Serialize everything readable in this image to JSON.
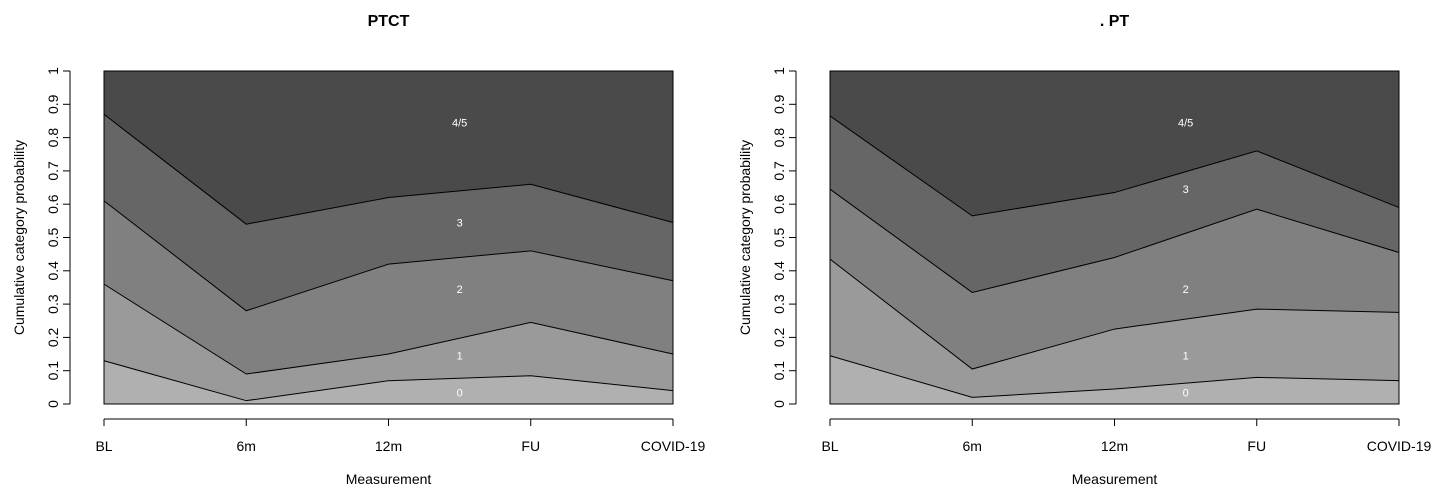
{
  "chart_data": [
    {
      "type": "area",
      "title": "PTCT",
      "xlabel": "Measurement",
      "ylabel": "Cumulative category probability",
      "categories": [
        "BL",
        "6m",
        "12m",
        "FU",
        "COVID-19"
      ],
      "ylim": [
        0,
        1
      ],
      "yticks": [
        "0",
        "0.1",
        "0.2",
        "0.3",
        "0.4",
        "0.5",
        "0.6",
        "0.7",
        "0.8",
        "0.9",
        "1"
      ],
      "grid": false,
      "band_colors": [
        "#b0b0b0",
        "#9a9a9a",
        "#808080",
        "#666666",
        "#4a4a4a"
      ],
      "boundaries": [
        {
          "name": "0",
          "values": [
            0.13,
            0.01,
            0.07,
            0.085,
            0.04
          ]
        },
        {
          "name": "1",
          "values": [
            0.36,
            0.09,
            0.15,
            0.245,
            0.15
          ]
        },
        {
          "name": "2",
          "values": [
            0.61,
            0.28,
            0.42,
            0.46,
            0.37
          ]
        },
        {
          "name": "3",
          "values": [
            0.87,
            0.54,
            0.62,
            0.66,
            0.545
          ]
        },
        {
          "name": "4/5",
          "values": [
            1,
            1,
            1,
            1,
            1
          ]
        }
      ],
      "band_labels": [
        {
          "text": "0",
          "x": 2.5,
          "y": 0.035
        },
        {
          "text": "1",
          "x": 2.5,
          "y": 0.145
        },
        {
          "text": "2",
          "x": 2.5,
          "y": 0.345
        },
        {
          "text": "3",
          "x": 2.5,
          "y": 0.545
        },
        {
          "text": "4/5",
          "x": 2.5,
          "y": 0.845
        }
      ]
    },
    {
      "type": "area",
      "title": ". PT",
      "xlabel": "Measurement",
      "ylabel": "Cumulative category probability",
      "categories": [
        "BL",
        "6m",
        "12m",
        "FU",
        "COVID-19"
      ],
      "ylim": [
        0,
        1
      ],
      "yticks": [
        "0",
        "0.1",
        "0.2",
        "0.3",
        "0.4",
        "0.5",
        "0.6",
        "0.7",
        "0.8",
        "0.9",
        "1"
      ],
      "grid": false,
      "band_colors": [
        "#b0b0b0",
        "#9a9a9a",
        "#808080",
        "#666666",
        "#4a4a4a"
      ],
      "boundaries": [
        {
          "name": "0",
          "values": [
            0.145,
            0.02,
            0.045,
            0.08,
            0.07
          ]
        },
        {
          "name": "1",
          "values": [
            0.435,
            0.105,
            0.225,
            0.285,
            0.275
          ]
        },
        {
          "name": "2",
          "values": [
            0.645,
            0.335,
            0.44,
            0.585,
            0.455
          ]
        },
        {
          "name": "3",
          "values": [
            0.865,
            0.565,
            0.635,
            0.76,
            0.59
          ]
        },
        {
          "name": "4/5",
          "values": [
            1,
            1,
            1,
            1,
            1
          ]
        }
      ],
      "band_labels": [
        {
          "text": "0",
          "x": 2.5,
          "y": 0.035
        },
        {
          "text": "1",
          "x": 2.5,
          "y": 0.145
        },
        {
          "text": "2",
          "x": 2.5,
          "y": 0.345
        },
        {
          "text": "3",
          "x": 2.5,
          "y": 0.645
        },
        {
          "text": "4/5",
          "x": 2.5,
          "y": 0.845
        }
      ]
    }
  ]
}
